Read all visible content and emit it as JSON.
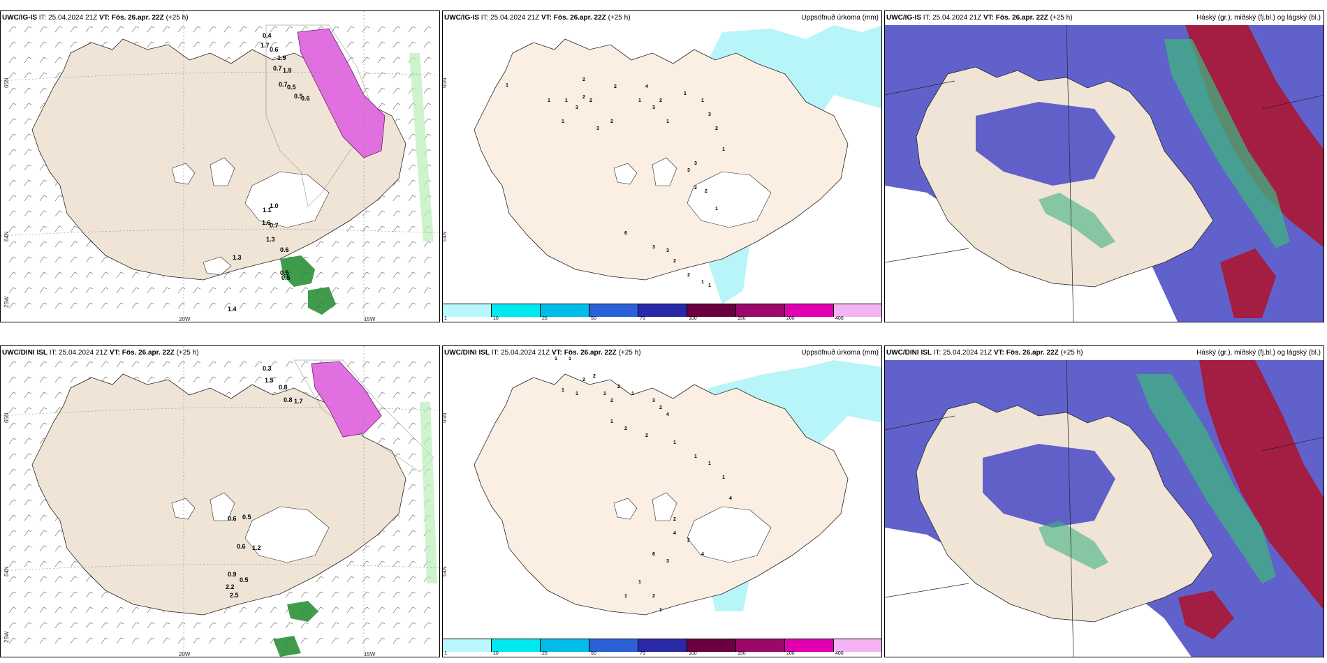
{
  "panels": [
    {
      "model": "UWC/IG-IS",
      "it_label": "IT:",
      "it_value": "25.04.2024 21Z",
      "vt_label": "VT:",
      "vt_value": "Fös. 26.apr. 22Z",
      "lead": "(+25 h)",
      "right_title": "",
      "type": "wind-precip",
      "axis_labels": {
        "lat_top": "65N",
        "lat_mid": "64N",
        "lon_left": "25W",
        "lon_a": "20W",
        "lon_b": "15W"
      },
      "point_labels": [
        "0.4",
        "1.7",
        "0.6",
        "1.9",
        "0.7",
        "1.9",
        "0.7",
        "0.5",
        "0.5",
        "0.6",
        "1.3",
        "1.1",
        "1.0",
        "1.6",
        "0.7",
        "1.3",
        "0.6",
        "0.5",
        "0.5",
        "1.4"
      ]
    },
    {
      "model": "UWC/IG-IS",
      "it_label": "IT:",
      "it_value": "25.04.2024 21Z",
      "vt_label": "VT:",
      "vt_value": "Fös. 26.apr. 22Z",
      "lead": "(+25 h)",
      "right_title": "Uppsöfnuð úrkoma (mm)",
      "type": "accum-precip",
      "axis_labels": {
        "lat_top": "65N",
        "lat_mid": "64N"
      },
      "point_labels": [
        "1",
        "1",
        "1",
        "2",
        "2",
        "2",
        "2",
        "1",
        "3",
        "2",
        "3",
        "1",
        "4",
        "3",
        "2",
        "1",
        "1",
        "1",
        "3",
        "2",
        "1",
        "3",
        "3",
        "2",
        "2",
        "1",
        "6",
        "3",
        "3",
        "2",
        "2",
        "1",
        "1"
      ],
      "colorbar": [
        "1",
        "10",
        "25",
        "50",
        "75",
        "100",
        "150",
        "200",
        "400"
      ]
    },
    {
      "model": "UWC/IG-IS",
      "it_label": "IT:",
      "it_value": "25.04.2024 21Z",
      "vt_label": "VT:",
      "vt_value": "Fös. 26.apr. 22Z",
      "lead": "(+25 h)",
      "right_title": "Háský (gr.), miðský (fj.bl.) og lágský (bl.)",
      "type": "clouds"
    },
    {
      "model": "UWC/DINI ISL",
      "it_label": "IT:",
      "it_value": "25.04.2024 21Z",
      "vt_label": "VT:",
      "vt_value": "Fös. 26.apr. 22Z",
      "lead": "(+25 h)",
      "right_title": "",
      "type": "wind-precip",
      "axis_labels": {
        "lat_top": "65N",
        "lat_mid": "64N",
        "lon_left": "25W",
        "lon_a": "20W",
        "lon_b": "15W"
      },
      "point_labels": [
        "0.3",
        "1.5",
        "0.8",
        "0.8",
        "1.7",
        "0.6",
        "0.5",
        "0.6",
        "1.2",
        "0.9",
        "0.5",
        "2.2",
        "2.5"
      ]
    },
    {
      "model": "UWC/DINI ISL",
      "it_label": "IT:",
      "it_value": "25.04.2024 21Z",
      "vt_label": "VT:",
      "vt_value": "Fös. 26.apr. 22Z",
      "lead": "(+25 h)",
      "right_title": "Uppsöfnuð úrkoma (mm)",
      "type": "accum-precip",
      "axis_labels": {
        "lat_top": "65N",
        "lat_mid": "64N"
      },
      "point_labels": [
        "1",
        "1",
        "2",
        "2",
        "1",
        "1",
        "1",
        "2",
        "2",
        "1",
        "3",
        "2",
        "4",
        "1",
        "2",
        "2",
        "1",
        "1",
        "1",
        "1",
        "4",
        "2",
        "6",
        "3",
        "4",
        "2",
        "4",
        "1",
        "1",
        "2",
        "1"
      ],
      "colorbar": [
        "1",
        "10",
        "25",
        "50",
        "75",
        "100",
        "150",
        "200",
        "400"
      ]
    },
    {
      "model": "UWC/DINI ISL",
      "it_label": "IT:",
      "it_value": "25.04.2024 21Z",
      "vt_label": "VT:",
      "vt_value": "Fös. 26.apr. 22Z",
      "lead": "(+25 h)",
      "right_title": "Háský (gr.), miðský (fj.bl.) og lágský (bl.)",
      "type": "clouds"
    }
  ],
  "colors": {
    "land": "#efe4d6",
    "land_accum": "#fbeee3",
    "accum_light": "#b8f5f8",
    "cloud_low": "#5858c8",
    "cloud_mid": "#a8193a",
    "cloud_high": "#3fb37f",
    "precip_purple": "#e070e0",
    "precip_green": "#1f8a2e"
  },
  "colorbar_colors": [
    "#b8f7fb",
    "#00e8f0",
    "#00bde8",
    "#2b60d8",
    "#2a2aa8",
    "#6a0040",
    "#9a0868",
    "#e000b0",
    "#f4b4f4"
  ]
}
